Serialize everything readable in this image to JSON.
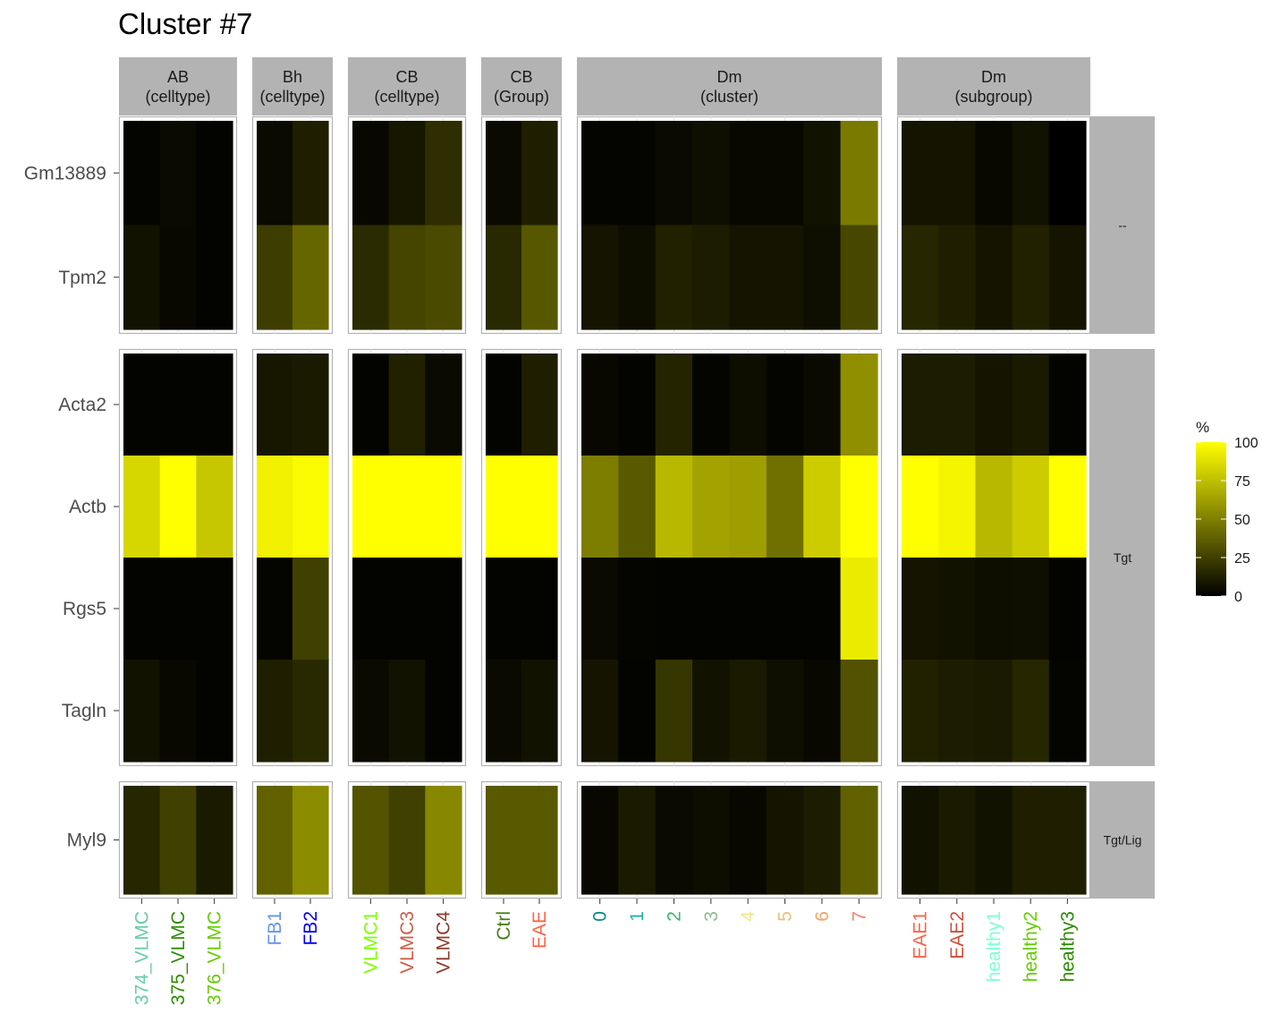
{
  "chart_data": {
    "type": "heatmap",
    "title": "Cluster #7",
    "legend": {
      "title": "%",
      "ticks": [
        0,
        25,
        50,
        75,
        100
      ],
      "low_color": "#000000",
      "high_color": "#ffff00",
      "placement": "right"
    },
    "column_panels": [
      {
        "strip": [
          "AB",
          "(celltype)"
        ],
        "columns": [
          "374_VLMC",
          "375_VLMC",
          "376_VLMC"
        ],
        "column_colors": [
          "#66cdaa",
          "#2e8b00",
          "#66cd00"
        ]
      },
      {
        "strip": [
          "Bh",
          "(celltype)"
        ],
        "columns": [
          "FB1",
          "FB2"
        ],
        "column_colors": [
          "#6495ed",
          "#0000ee"
        ]
      },
      {
        "strip": [
          "CB",
          "(celltype)"
        ],
        "columns": [
          "VLMC1",
          "VLMC3",
          "VLMC4"
        ],
        "column_colors": [
          "#7fff00",
          "#cd5c45",
          "#8b3a2a"
        ]
      },
      {
        "strip": [
          "CB",
          "(Group)"
        ],
        "columns": [
          "Ctrl",
          "EAE"
        ],
        "column_colors": [
          "#4a7d1a",
          "#ff6347"
        ]
      },
      {
        "strip": [
          "Dm",
          "(cluster)"
        ],
        "columns": [
          "0",
          "1",
          "2",
          "3",
          "4",
          "5",
          "6",
          "7"
        ],
        "column_colors": [
          "#008b8b",
          "#20b2aa",
          "#3cb371",
          "#8fbc8f",
          "#f0e68c",
          "#e8c07a",
          "#f4a460",
          "#fa8072"
        ]
      },
      {
        "strip": [
          "Dm",
          "(subgroup)"
        ],
        "columns": [
          "EAE1",
          "EAE2",
          "healthy1",
          "healthy2",
          "healthy3"
        ],
        "column_colors": [
          "#ff6347",
          "#cd4f39",
          "#7fffd4",
          "#66cd00",
          "#2e8b00"
        ]
      }
    ],
    "row_panels": [
      {
        "strip": "--",
        "rows": [
          "Gm13889",
          "Tpm2"
        ]
      },
      {
        "strip": "Tgt",
        "rows": [
          "Acta2",
          "Actb",
          "Rgs5",
          "Tagln"
        ]
      },
      {
        "strip": "Tgt/Lig",
        "rows": [
          "Myl9"
        ]
      }
    ],
    "values": {
      "Gm13889": [
        [
          2,
          4,
          1
        ],
        [
          4,
          12
        ],
        [
          3,
          9,
          18
        ],
        [
          4,
          12
        ],
        [
          2,
          2,
          4,
          6,
          3,
          3,
          7,
          48
        ],
        [
          8,
          8,
          3,
          7,
          0
        ]
      ],
      "Tpm2": [
        [
          7,
          3,
          1
        ],
        [
          24,
          40
        ],
        [
          17,
          27,
          29
        ],
        [
          16,
          34
        ],
        [
          8,
          5,
          13,
          11,
          8,
          8,
          6,
          28
        ],
        [
          15,
          12,
          8,
          13,
          8
        ]
      ],
      "Acta2": [
        [
          1,
          1,
          1
        ],
        [
          9,
          10
        ],
        [
          1,
          13,
          4
        ],
        [
          1,
          12
        ],
        [
          3,
          1,
          14,
          2,
          5,
          2,
          4,
          56
        ],
        [
          11,
          11,
          8,
          10,
          1
        ]
      ],
      "Actb": [
        [
          84,
          100,
          78
        ],
        [
          94,
          98
        ],
        [
          100,
          100,
          100
        ],
        [
          100,
          100
        ],
        [
          49,
          35,
          72,
          64,
          62,
          44,
          80,
          100
        ],
        [
          100,
          96,
          72,
          80,
          100
        ]
      ],
      "Rgs5": [
        [
          1,
          1,
          1
        ],
        [
          2,
          25
        ],
        [
          1,
          1,
          1
        ],
        [
          1,
          1
        ],
        [
          4,
          2,
          1,
          1,
          1,
          1,
          1,
          92
        ],
        [
          8,
          7,
          5,
          6,
          1
        ]
      ],
      "Tagln": [
        [
          7,
          3,
          1
        ],
        [
          12,
          16
        ],
        [
          4,
          7,
          1
        ],
        [
          4,
          7
        ],
        [
          8,
          1,
          21,
          7,
          10,
          6,
          3,
          32
        ],
        [
          13,
          11,
          10,
          15,
          2
        ]
      ],
      "Myl9": [
        [
          15,
          25,
          10
        ],
        [
          38,
          55
        ],
        [
          33,
          25,
          53
        ],
        [
          35,
          35
        ],
        [
          3,
          10,
          4,
          5,
          3,
          8,
          11,
          38
        ],
        [
          7,
          10,
          7,
          12,
          12
        ]
      ]
    }
  }
}
